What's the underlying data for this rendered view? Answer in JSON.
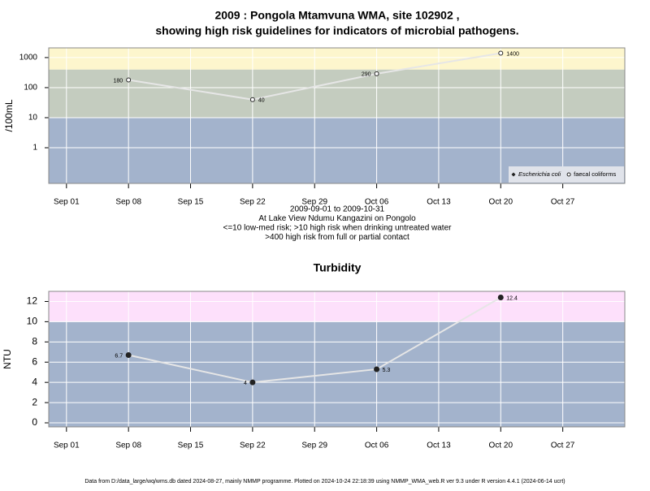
{
  "chart_data": [
    {
      "type": "line",
      "title": [
        "2009 : Pongola Mtamvuna WMA, site 102902 ,",
        "showing high risk guidelines for indicators of microbial pathogens."
      ],
      "notes": [
        "2009-09-01 to 2009-10-31",
        "At Lake View Ndumu Kangazini on Pongolo",
        "<=10 low-med risk; >10 high risk when drinking untreated water",
        ">400 high risk from full or partial contact"
      ],
      "ylabel": "/100mL",
      "x": [
        "2009-09-08",
        "2009-09-22",
        "2009-10-06",
        "2009-10-20"
      ],
      "series": [
        {
          "name": "Escherichia coli",
          "color": "#222222",
          "marker": "diamond",
          "values": [
            null,
            null,
            null,
            null
          ]
        },
        {
          "name": "faecal coliforms",
          "color": "#222222",
          "marker": "circle",
          "values": [
            180,
            40,
            290,
            1400
          ]
        }
      ],
      "xlim": [
        "2009-08-30",
        "2009-11-03"
      ],
      "xticks": [
        {
          "value": "2009-09-01",
          "label": "Sep 01"
        },
        {
          "value": "2009-09-08",
          "label": "Sep 08"
        },
        {
          "value": "2009-09-15",
          "label": "Sep 15"
        },
        {
          "value": "2009-09-22",
          "label": "Sep 22"
        },
        {
          "value": "2009-09-29",
          "label": "Sep 29"
        },
        {
          "value": "2009-10-06",
          "label": "Oct 06"
        },
        {
          "value": "2009-10-13",
          "label": "Oct 13"
        },
        {
          "value": "2009-10-20",
          "label": "Oct 20"
        },
        {
          "value": "2009-10-27",
          "label": "Oct 27"
        }
      ],
      "ylim": [
        0.065,
        2100
      ],
      "yticks": [
        1,
        10,
        100,
        1000
      ],
      "log_y": true,
      "grid": true,
      "bands": [
        {
          "to": 10,
          "color": "#a3b3cc"
        },
        {
          "from": 10,
          "to": 400,
          "color": "#c4ccbf"
        },
        {
          "from": 400,
          "color": "#fdf6cd"
        }
      ],
      "legend": "bottom right"
    },
    {
      "type": "line",
      "title": [
        "Turbidity"
      ],
      "ylabel": "NTU",
      "x": [
        "2009-09-08",
        "2009-09-22",
        "2009-10-06",
        "2009-10-20"
      ],
      "series": [
        {
          "color": "#222222",
          "marker": "dot",
          "values": [
            6.7,
            4,
            5.3,
            12.4
          ]
        }
      ],
      "xlim": [
        "2009-08-30",
        "2009-11-03"
      ],
      "xticks": [
        {
          "value": "2009-09-01",
          "label": "Sep 01"
        },
        {
          "value": "2009-09-08",
          "label": "Sep 08"
        },
        {
          "value": "2009-09-15",
          "label": "Sep 15"
        },
        {
          "value": "2009-09-22",
          "label": "Sep 22"
        },
        {
          "value": "2009-09-29",
          "label": "Sep 29"
        },
        {
          "value": "2009-10-06",
          "label": "Oct 06"
        },
        {
          "value": "2009-10-13",
          "label": "Oct 13"
        },
        {
          "value": "2009-10-20",
          "label": "Oct 20"
        },
        {
          "value": "2009-10-27",
          "label": "Oct 27"
        }
      ],
      "ylim": [
        -0.4,
        13
      ],
      "yticks": [
        0,
        2,
        4,
        6,
        8,
        10,
        12
      ],
      "log_y": false,
      "grid": true,
      "bands": [
        {
          "to": 10,
          "color": "#a3b3cc"
        },
        {
          "from": 10,
          "color": "#fde0fb"
        }
      ]
    }
  ],
  "footer": "Data from D:/data_large/wq/wms.db dated 2024-08-27, mainly NMMP programme. Plotted on 2024-10-24 22:18:39 using NMMP_WMA_web.R ver 9.3 under R version 4.4.1 (2024-06-14 ucrt)"
}
